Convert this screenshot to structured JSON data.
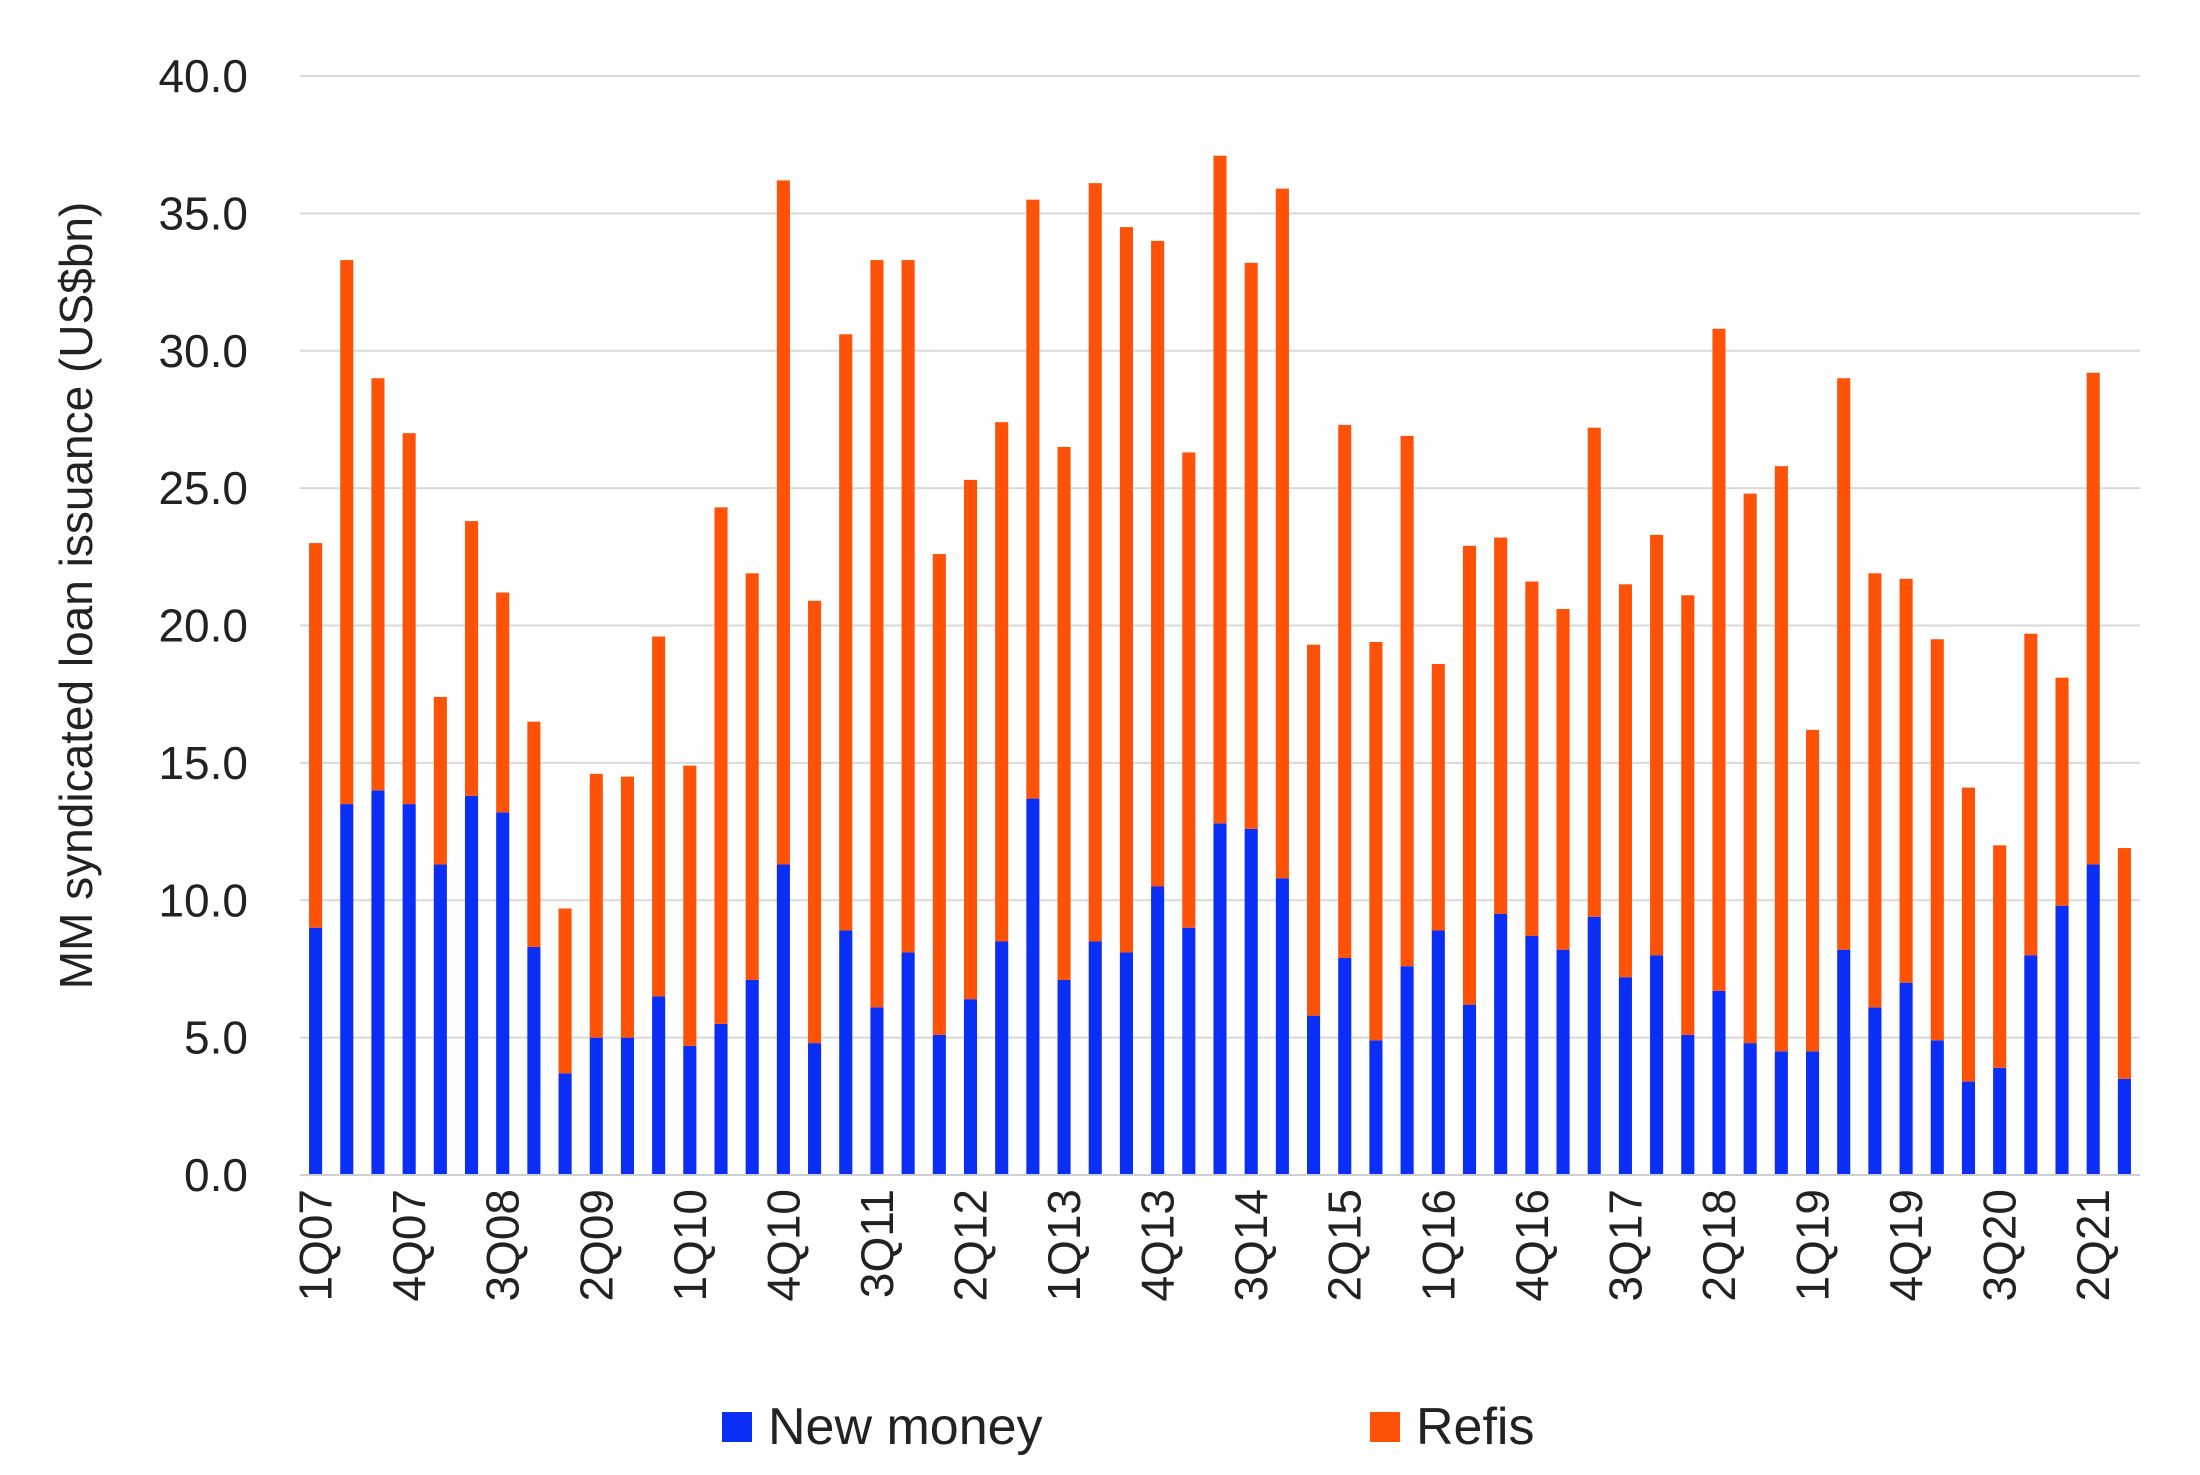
{
  "chart_data": {
    "type": "bar",
    "stacked": true,
    "ylabel": "MM syndicated loan issuance (US$bn)",
    "xlabel": "",
    "ylim": [
      0,
      40
    ],
    "yticks": [
      "0.0",
      "5.0",
      "10.0",
      "15.0",
      "20.0",
      "25.0",
      "30.0",
      "35.0",
      "40.0"
    ],
    "grid": true,
    "legend_position": "bottom",
    "categories": [
      "1Q07",
      "2Q07",
      "3Q07",
      "4Q07",
      "1Q08",
      "2Q08",
      "3Q08",
      "4Q08",
      "1Q09",
      "2Q09",
      "3Q09",
      "4Q09",
      "1Q10",
      "2Q10",
      "3Q10",
      "4Q10",
      "1Q11",
      "2Q11",
      "3Q11",
      "4Q11",
      "1Q12",
      "2Q12",
      "3Q12",
      "4Q12",
      "1Q13",
      "2Q13",
      "3Q13",
      "4Q13",
      "1Q14",
      "2Q14",
      "3Q14",
      "4Q14",
      "1Q15",
      "2Q15",
      "3Q15",
      "4Q15",
      "1Q16",
      "2Q16",
      "3Q16",
      "4Q16",
      "1Q17",
      "2Q17",
      "3Q17",
      "4Q17",
      "1Q18",
      "2Q18",
      "3Q18",
      "4Q18",
      "1Q19",
      "2Q19",
      "3Q19",
      "4Q19",
      "1Q20",
      "2Q20",
      "3Q20",
      "4Q20",
      "1Q21",
      "2Q21",
      "3Q21"
    ],
    "tick_labels_shown": [
      "1Q07",
      "4Q07",
      "3Q08",
      "2Q09",
      "1Q10",
      "4Q10",
      "3Q11",
      "2Q12",
      "1Q13",
      "4Q13",
      "3Q14",
      "2Q15",
      "1Q16",
      "4Q16",
      "3Q17",
      "2Q18",
      "1Q19",
      "4Q19",
      "3Q20",
      "2Q21"
    ],
    "series": [
      {
        "name": "New money",
        "color": "#0a2ef5",
        "values": [
          9.0,
          13.5,
          14.0,
          13.5,
          11.3,
          13.8,
          13.2,
          8.3,
          3.7,
          5.0,
          5.0,
          6.5,
          4.7,
          5.5,
          7.1,
          11.3,
          4.8,
          8.9,
          6.1,
          8.1,
          5.1,
          6.4,
          8.5,
          13.7,
          7.1,
          8.5,
          8.1,
          10.5,
          9.0,
          12.8,
          12.6,
          10.8,
          5.8,
          7.9,
          4.9,
          7.6,
          8.9,
          6.2,
          9.5,
          8.7,
          8.2,
          9.4,
          7.2,
          8.0,
          5.1,
          6.7,
          4.8,
          4.5,
          4.5,
          8.2,
          6.1,
          7.0,
          4.9,
          3.4,
          3.9,
          8.0,
          9.8,
          11.3,
          3.5
        ]
      },
      {
        "name": "Refis",
        "color": "#fe5209",
        "values": [
          14.0,
          19.8,
          15.0,
          13.5,
          6.1,
          10.0,
          8.0,
          8.2,
          6.0,
          9.6,
          9.5,
          13.1,
          10.2,
          18.8,
          14.8,
          24.9,
          16.1,
          21.7,
          27.2,
          25.2,
          17.5,
          18.9,
          18.9,
          21.8,
          19.4,
          27.6,
          26.4,
          23.5,
          17.3,
          24.3,
          20.6,
          25.1,
          13.5,
          19.4,
          14.5,
          19.3,
          9.7,
          16.7,
          13.7,
          12.9,
          12.4,
          17.8,
          14.3,
          15.3,
          16.0,
          24.1,
          20.0,
          21.3,
          11.7,
          20.8,
          15.8,
          14.7,
          14.6,
          10.7,
          8.1,
          11.7,
          8.3,
          17.9,
          8.4
        ]
      }
    ]
  }
}
